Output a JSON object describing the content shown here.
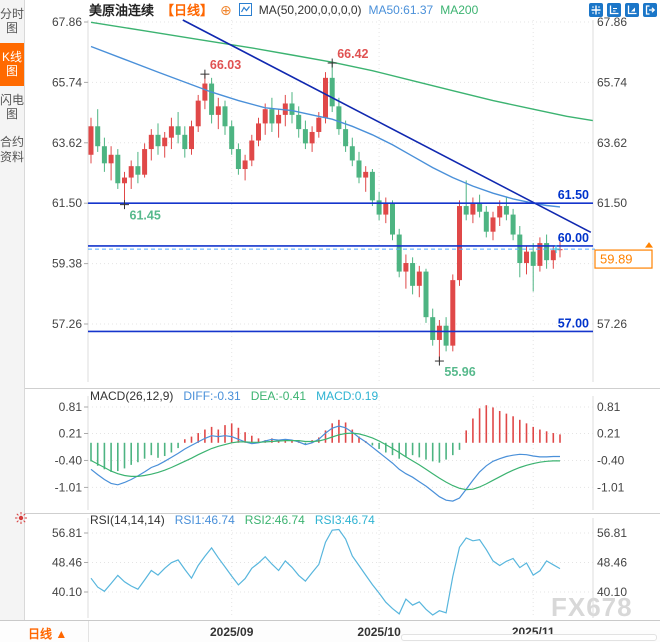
{
  "sidebar": {
    "items": [
      {
        "label": "分时图",
        "active": false
      },
      {
        "label": "K线图",
        "active": true
      },
      {
        "label": "闪电图",
        "active": false
      },
      {
        "label": "合约资料",
        "active": false
      }
    ]
  },
  "header": {
    "title": "美原油连续",
    "period_tag": "【日线】",
    "add_icon": "⊕",
    "ma_settings": "MA(50,200,0,0,0,0)",
    "ma50_label": "MA50:61.37",
    "ma200_label": "MA200"
  },
  "toolbar_icons": [
    "crosshair-icon",
    "axis-range-icon",
    "axis-scale-icon",
    "popout-icon"
  ],
  "footer": {
    "period_label": "日线 ▲"
  },
  "watermark": "FX678",
  "colors": {
    "up": "#e04848",
    "down": "#4db482",
    "ma50": "#4a90d9",
    "ma200": "#3cb371",
    "trend": "#1028b0",
    "level": "#1535cc",
    "level_label": "#0033cc",
    "dashed": "#55aaff",
    "orange": "#ff8200",
    "diff": "#4a90d9",
    "dea": "#3cb371",
    "macd_line": "#2fb3d2",
    "rsi_line": "#58b6dd",
    "ann_red": "#e05252",
    "ann_green": "#57b98c",
    "axis": "#444444",
    "grid": "#e4e4e4",
    "cross": "#333333",
    "teal_mark": "#3ec6e0"
  },
  "chart_data": [
    {
      "type": "candlestick",
      "title": "美原油连续 日线 (WTI crude oil continuous, daily)",
      "y_ticks": [
        67.86,
        65.74,
        63.62,
        61.5,
        59.38,
        57.26
      ],
      "x_ticks": [
        {
          "label": "2025/09",
          "index": 21
        },
        {
          "label": "2025/10",
          "index": 43
        },
        {
          "label": "2025/11",
          "index": 66
        }
      ],
      "candles": [
        [
          63.2,
          64.5,
          62.9,
          64.2
        ],
        [
          64.2,
          64.8,
          63.3,
          63.5
        ],
        [
          63.5,
          63.8,
          62.6,
          62.9
        ],
        [
          62.9,
          63.5,
          62.3,
          63.2
        ],
        [
          63.2,
          63.4,
          62.0,
          62.2
        ],
        [
          62.2,
          62.6,
          61.45,
          62.4
        ],
        [
          62.4,
          63.0,
          62.0,
          62.8
        ],
        [
          62.8,
          63.3,
          62.2,
          62.5
        ],
        [
          62.5,
          63.6,
          62.4,
          63.4
        ],
        [
          63.4,
          64.1,
          63.0,
          63.9
        ],
        [
          63.9,
          64.3,
          63.2,
          63.5
        ],
        [
          63.5,
          64.0,
          63.1,
          63.8
        ],
        [
          63.8,
          64.5,
          63.4,
          64.2
        ],
        [
          64.2,
          64.7,
          63.6,
          63.9
        ],
        [
          63.9,
          64.2,
          63.1,
          63.4
        ],
        [
          63.4,
          64.4,
          63.2,
          64.2
        ],
        [
          64.2,
          65.3,
          64.0,
          65.1
        ],
        [
          65.1,
          66.03,
          64.8,
          65.7
        ],
        [
          65.7,
          65.9,
          64.3,
          64.6
        ],
        [
          64.6,
          65.2,
          64.1,
          64.9
        ],
        [
          64.9,
          65.1,
          63.9,
          64.2
        ],
        [
          64.2,
          64.4,
          63.2,
          63.4
        ],
        [
          63.4,
          63.6,
          62.5,
          62.7
        ],
        [
          62.7,
          63.2,
          62.3,
          63.0
        ],
        [
          63.0,
          63.9,
          62.8,
          63.7
        ],
        [
          63.7,
          64.5,
          63.5,
          64.3
        ],
        [
          64.3,
          65.0,
          63.9,
          64.8
        ],
        [
          64.8,
          65.2,
          64.0,
          64.3
        ],
        [
          64.3,
          64.8,
          63.8,
          64.6
        ],
        [
          64.6,
          65.3,
          64.2,
          65.0
        ],
        [
          65.0,
          65.4,
          64.3,
          64.6
        ],
        [
          64.6,
          64.9,
          63.8,
          64.1
        ],
        [
          64.1,
          64.4,
          63.4,
          63.6
        ],
        [
          63.6,
          64.2,
          63.3,
          64.0
        ],
        [
          64.0,
          64.7,
          63.8,
          64.5
        ],
        [
          64.5,
          66.1,
          64.3,
          65.9
        ],
        [
          65.9,
          66.42,
          64.7,
          64.9
        ],
        [
          64.9,
          65.2,
          63.9,
          64.1
        ],
        [
          64.1,
          64.4,
          63.3,
          63.5
        ],
        [
          63.5,
          63.8,
          62.8,
          63.0
        ],
        [
          63.0,
          63.3,
          62.2,
          62.4
        ],
        [
          62.4,
          62.8,
          61.9,
          62.6
        ],
        [
          62.6,
          62.7,
          61.4,
          61.6
        ],
        [
          61.6,
          61.9,
          60.9,
          61.1
        ],
        [
          61.1,
          61.7,
          60.8,
          61.5
        ],
        [
          61.5,
          61.6,
          60.2,
          60.4
        ],
        [
          60.4,
          60.6,
          58.9,
          59.1
        ],
        [
          59.1,
          59.7,
          58.5,
          59.4
        ],
        [
          59.4,
          59.6,
          58.3,
          58.6
        ],
        [
          58.6,
          59.3,
          58.2,
          59.1
        ],
        [
          59.1,
          59.2,
          57.3,
          57.5
        ],
        [
          57.5,
          57.8,
          56.5,
          56.7
        ],
        [
          56.7,
          57.4,
          55.96,
          57.2
        ],
        [
          57.2,
          57.5,
          56.3,
          56.5
        ],
        [
          56.5,
          59.0,
          56.3,
          58.8
        ],
        [
          58.8,
          61.6,
          58.6,
          61.4
        ],
        [
          61.4,
          62.3,
          60.9,
          61.1
        ],
        [
          61.1,
          61.7,
          60.8,
          61.5
        ],
        [
          61.5,
          61.8,
          61.0,
          61.2
        ],
        [
          61.2,
          61.4,
          60.3,
          60.5
        ],
        [
          60.5,
          61.2,
          60.2,
          61.0
        ],
        [
          61.0,
          61.6,
          60.7,
          61.4
        ],
        [
          61.4,
          61.7,
          60.9,
          61.1
        ],
        [
          61.1,
          61.3,
          60.2,
          60.4
        ],
        [
          60.4,
          60.7,
          58.9,
          59.4
        ],
        [
          59.4,
          60.0,
          59.0,
          59.8
        ],
        [
          59.8,
          60.1,
          58.4,
          59.3
        ],
        [
          59.3,
          60.3,
          59.1,
          60.1
        ],
        [
          60.1,
          60.4,
          59.2,
          59.5
        ],
        [
          59.5,
          60.0,
          59.2,
          59.85
        ],
        [
          59.85,
          60.15,
          59.6,
          59.89
        ]
      ],
      "ma50_points": [
        [
          0,
          67.0
        ],
        [
          5,
          66.55
        ],
        [
          10,
          66.1
        ],
        [
          14,
          65.75
        ],
        [
          18,
          65.4
        ],
        [
          22,
          65.1
        ],
        [
          26,
          64.85
        ],
        [
          30,
          64.75
        ],
        [
          33,
          64.6
        ],
        [
          36,
          64.45
        ],
        [
          39,
          64.2
        ],
        [
          42,
          63.9
        ],
        [
          45,
          63.55
        ],
        [
          48,
          63.15
        ],
        [
          51,
          62.75
        ],
        [
          54,
          62.4
        ],
        [
          57,
          62.1
        ],
        [
          60,
          61.85
        ],
        [
          63,
          61.65
        ],
        [
          66,
          61.5
        ],
        [
          68,
          61.42
        ],
        [
          70,
          61.37
        ]
      ],
      "ma200_points": [
        [
          0,
          67.85
        ],
        [
          8,
          67.55
        ],
        [
          16,
          67.25
        ],
        [
          24,
          66.95
        ],
        [
          30,
          66.7
        ],
        [
          36,
          66.45
        ],
        [
          42,
          66.15
        ],
        [
          48,
          65.8
        ],
        [
          54,
          65.45
        ],
        [
          60,
          65.1
        ],
        [
          66,
          64.8
        ],
        [
          71,
          64.55
        ],
        [
          74.9,
          64.4
        ]
      ],
      "trendline": {
        "points": [
          [
            13.7,
            67.93
          ],
          [
            74.6,
            60.48
          ]
        ]
      },
      "levels": [
        {
          "price": 61.5,
          "label": "61.50"
        },
        {
          "price": 60.0,
          "label": "60.00"
        },
        {
          "price": 57.0,
          "label": "57.00"
        }
      ],
      "current_price": {
        "value": 59.89,
        "label": "59.89"
      },
      "right_axis_hidden_tick": 59.38,
      "annotations": [
        {
          "text": "66.03",
          "index": 17,
          "price": 66.03,
          "color": "red",
          "position": "above"
        },
        {
          "text": "66.42",
          "index": 36,
          "price": 66.42,
          "color": "red",
          "position": "above"
        },
        {
          "text": "61.45",
          "index": 5,
          "price": 61.45,
          "color": "green",
          "position": "below"
        },
        {
          "text": "55.96",
          "index": 52,
          "price": 55.96,
          "color": "green",
          "position": "below"
        }
      ]
    },
    {
      "type": "bar",
      "title": "MACD",
      "params_label": "MACD(26,12,9)",
      "diff_label": "DIFF:-0.31",
      "dea_label": "DEA:-0.41",
      "macd_label": "MACD:0.19",
      "y_ticks": [
        0.81,
        0.21,
        -0.4,
        -1.01
      ],
      "hist": [
        -0.42,
        -0.52,
        -0.6,
        -0.66,
        -0.64,
        -0.58,
        -0.5,
        -0.44,
        -0.36,
        -0.28,
        -0.34,
        -0.3,
        -0.22,
        -0.12,
        0.08,
        0.14,
        0.22,
        0.3,
        0.36,
        0.3,
        0.4,
        0.44,
        0.34,
        0.24,
        0.16,
        0.1,
        0.06,
        0.1,
        0.05,
        0.08,
        0.04,
        0.06,
        -0.04,
        0.06,
        0.12,
        0.28,
        0.44,
        0.52,
        0.46,
        0.3,
        0.14,
        0.04,
        -0.06,
        -0.14,
        -0.22,
        -0.28,
        -0.36,
        -0.32,
        -0.28,
        -0.33,
        -0.38,
        -0.42,
        -0.45,
        -0.38,
        -0.28,
        -0.16,
        0.28,
        0.55,
        0.78,
        0.85,
        0.8,
        0.72,
        0.66,
        0.6,
        0.52,
        0.44,
        0.36,
        0.3,
        0.26,
        0.22,
        0.19
      ],
      "diff": [
        -0.6,
        -0.72,
        -0.83,
        -0.92,
        -0.95,
        -0.9,
        -0.83,
        -0.75,
        -0.66,
        -0.56,
        -0.5,
        -0.42,
        -0.33,
        -0.24,
        -0.14,
        -0.06,
        0.02,
        0.1,
        0.16,
        0.14,
        0.16,
        0.14,
        0.08,
        0.02,
        -0.02,
        0.0,
        0.04,
        0.08,
        0.06,
        0.08,
        0.06,
        0.02,
        -0.04,
        0.0,
        0.08,
        0.22,
        0.33,
        0.38,
        0.34,
        0.24,
        0.12,
        0.02,
        -0.1,
        -0.22,
        -0.34,
        -0.46,
        -0.6,
        -0.7,
        -0.78,
        -0.88,
        -0.98,
        -1.1,
        -1.22,
        -1.3,
        -1.32,
        -1.25,
        -1.05,
        -0.85,
        -0.66,
        -0.52,
        -0.42,
        -0.36,
        -0.31,
        -0.28,
        -0.26,
        -0.27,
        -0.3,
        -0.32,
        -0.32,
        -0.31,
        -0.31
      ],
      "dea": [
        -0.4,
        -0.48,
        -0.56,
        -0.64,
        -0.7,
        -0.74,
        -0.76,
        -0.76,
        -0.74,
        -0.71,
        -0.67,
        -0.62,
        -0.56,
        -0.49,
        -0.42,
        -0.35,
        -0.27,
        -0.2,
        -0.13,
        -0.08,
        -0.04,
        0.0,
        0.02,
        0.02,
        0.01,
        0.01,
        0.02,
        0.03,
        0.04,
        0.05,
        0.05,
        0.05,
        0.03,
        0.03,
        0.04,
        0.08,
        0.13,
        0.18,
        0.21,
        0.22,
        0.2,
        0.16,
        0.11,
        0.04,
        -0.04,
        -0.13,
        -0.22,
        -0.32,
        -0.41,
        -0.5,
        -0.6,
        -0.7,
        -0.8,
        -0.89,
        -0.97,
        -1.03,
        -1.06,
        -1.05,
        -1.0,
        -0.93,
        -0.85,
        -0.77,
        -0.69,
        -0.62,
        -0.56,
        -0.51,
        -0.47,
        -0.44,
        -0.42,
        -0.41,
        -0.41
      ]
    },
    {
      "type": "line",
      "title": "RSI",
      "params_label": "RSI(14,14,14)",
      "rsi1_label": "RSI1:46.74",
      "rsi2_label": "RSI2:46.74",
      "rsi3_label": "RSI3:46.74",
      "y_ticks": [
        56.81,
        48.46,
        40.1
      ],
      "rsi": [
        44.0,
        41.5,
        40.3,
        42.5,
        44.8,
        43.0,
        41.8,
        40.9,
        43.5,
        46.2,
        44.9,
        46.8,
        48.4,
        49.2,
        46.5,
        44.0,
        47.6,
        50.2,
        52.6,
        49.8,
        47.2,
        44.6,
        42.1,
        43.9,
        46.8,
        48.3,
        50.1,
        48.0,
        46.2,
        48.9,
        47.1,
        44.8,
        43.2,
        45.6,
        47.9,
        54.2,
        57.6,
        57.8,
        55.1,
        50.3,
        47.6,
        44.9,
        42.2,
        39.8,
        37.2,
        35.4,
        33.9,
        38.1,
        36.4,
        37.3,
        35.2,
        33.6,
        34.8,
        34.2,
        44.5,
        52.8,
        55.4,
        54.6,
        54.9,
        52.1,
        48.9,
        47.6,
        48.8,
        49.6,
        47.0,
        48.3,
        44.9,
        46.1,
        48.9,
        47.8,
        46.74
      ]
    }
  ]
}
